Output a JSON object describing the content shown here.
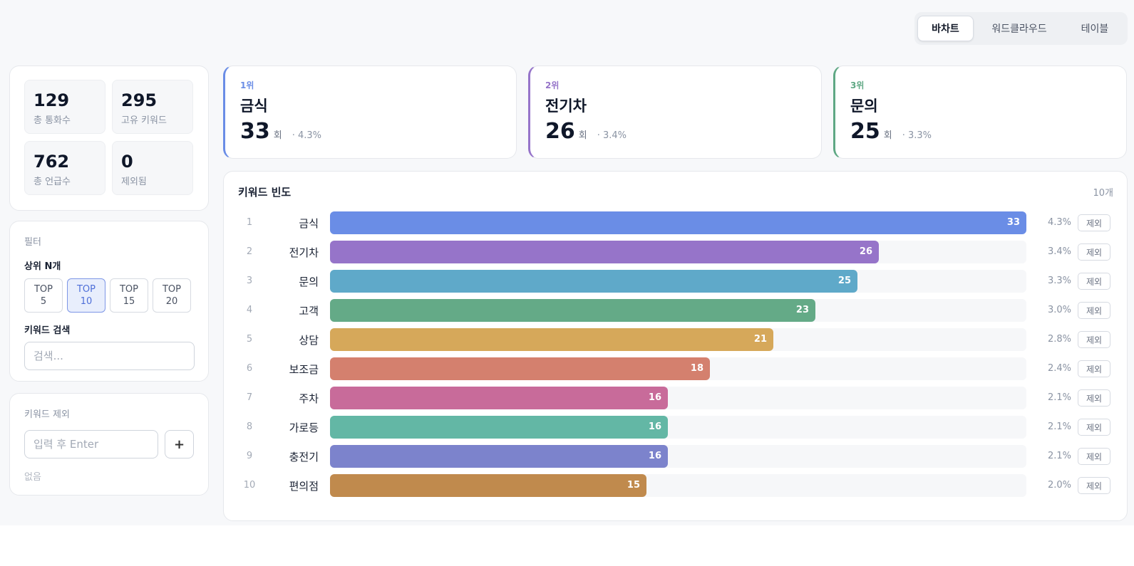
{
  "view_toggle": {
    "options": [
      "바차트",
      "워드클라우드",
      "테이블"
    ],
    "active": "바차트"
  },
  "stats": [
    {
      "value": "129",
      "label": "총 통화수"
    },
    {
      "value": "295",
      "label": "고유 키워드"
    },
    {
      "value": "762",
      "label": "총 언급수"
    },
    {
      "value": "0",
      "label": "제외됨"
    }
  ],
  "filter": {
    "title": "필터",
    "topn_label": "상위 N개",
    "topn_options": [
      {
        "line1": "TOP",
        "line2": "5"
      },
      {
        "line1": "TOP",
        "line2": "10"
      },
      {
        "line1": "TOP",
        "line2": "15"
      },
      {
        "line1": "TOP",
        "line2": "20"
      }
    ],
    "topn_active": "10",
    "search_label": "키워드 검색",
    "search_placeholder": "검색..."
  },
  "exclude": {
    "title": "키워드 제외",
    "input_placeholder": "입력 후 Enter",
    "add_label": "+",
    "empty_text": "없음"
  },
  "top_ranks": [
    {
      "rank_label": "1위",
      "keyword": "금식",
      "count": "33",
      "unit": "회",
      "pct": "· 4.3%",
      "color": "#6a8de6"
    },
    {
      "rank_label": "2위",
      "keyword": "전기차",
      "count": "26",
      "unit": "회",
      "pct": "· 3.4%",
      "color": "#9674c9"
    },
    {
      "rank_label": "3위",
      "keyword": "문의",
      "count": "25",
      "unit": "회",
      "pct": "· 3.3%",
      "color": "#5fa884"
    }
  ],
  "chart": {
    "title": "키워드 빈도",
    "count_label": "10개",
    "exclude_label": "제외"
  },
  "chart_data": {
    "type": "bar",
    "orientation": "horizontal",
    "categories": [
      "금식",
      "전기차",
      "문의",
      "고객",
      "상담",
      "보조금",
      "주차",
      "가로등",
      "충전기",
      "편의점"
    ],
    "values": [
      33,
      26,
      25,
      23,
      21,
      18,
      16,
      16,
      16,
      15
    ],
    "percentages": [
      "4.3%",
      "3.4%",
      "3.3%",
      "3.0%",
      "2.8%",
      "2.4%",
      "2.1%",
      "2.1%",
      "2.1%",
      "2.0%"
    ],
    "ranks": [
      "1",
      "2",
      "3",
      "4",
      "5",
      "6",
      "7",
      "8",
      "9",
      "10"
    ],
    "colors": [
      "#6a8de6",
      "#9674c9",
      "#5fa9c9",
      "#64aa87",
      "#d6a85a",
      "#d4806e",
      "#c86b9a",
      "#63b7a5",
      "#7c83cc",
      "#c08a4d"
    ],
    "xlim": [
      0,
      33
    ]
  }
}
